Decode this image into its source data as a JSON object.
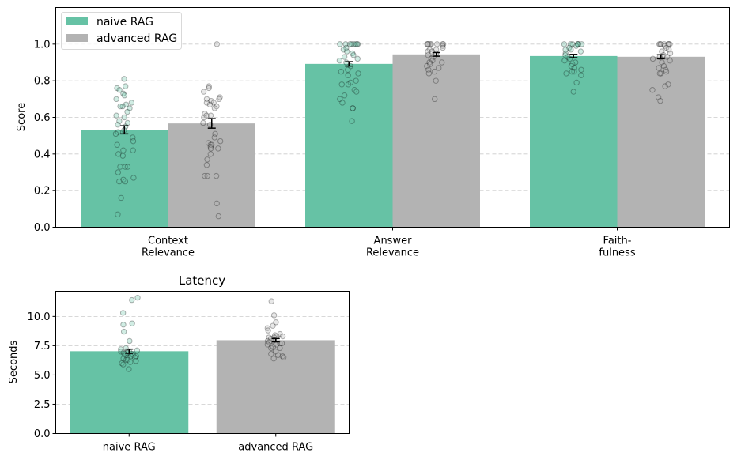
{
  "colors": {
    "naive": "#66c2a5",
    "advanced": "#b3b3b3",
    "grid": "#cccccc",
    "errorbar": "#000000"
  },
  "chart_data": [
    {
      "type": "bar",
      "title": "",
      "xlabel": "",
      "ylabel": "Score",
      "ylim": [
        0,
        1.2
      ],
      "yticks": [
        0.0,
        0.2,
        0.4,
        0.6,
        0.8,
        1.0
      ],
      "ytick_labels": [
        "0.0",
        "0.2",
        "0.4",
        "0.6",
        "0.8",
        "1.0"
      ],
      "grid": "y, dashed",
      "legend": {
        "placement": "top-left",
        "entries": [
          "naive RAG",
          "advanced RAG"
        ]
      },
      "categories": [
        [
          "Context",
          "Relevance"
        ],
        [
          "Answer",
          "Relevance"
        ],
        [
          "Faith-",
          "fulness"
        ]
      ],
      "series": [
        {
          "name": "naive RAG",
          "values": [
            0.532,
            0.892,
            0.935
          ],
          "errors": [
            0.022,
            0.012,
            0.009
          ],
          "points": [
            [
              0.81,
              0.77,
              0.76,
              0.75,
              0.73,
              0.72,
              0.7,
              0.68,
              0.67,
              0.66,
              0.66,
              0.65,
              0.63,
              0.61,
              0.6,
              0.58,
              0.57,
              0.56,
              0.55,
              0.53,
              0.52,
              0.51,
              0.49,
              0.47,
              0.45,
              0.42,
              0.42,
              0.4,
              0.39,
              0.33,
              0.33,
              0.33,
              0.3,
              0.27,
              0.26,
              0.25,
              0.25,
              0.16,
              0.07
            ],
            [
              1.0,
              1.0,
              1.0,
              1.0,
              1.0,
              1.0,
              1.0,
              1.0,
              0.98,
              0.97,
              0.96,
              0.95,
              0.94,
              0.93,
              0.92,
              0.91,
              0.9,
              0.88,
              0.86,
              0.85,
              0.84,
              0.83,
              0.8,
              0.79,
              0.78,
              0.78,
              0.75,
              0.74,
              0.72,
              0.7,
              0.68,
              0.65,
              0.65,
              0.58
            ],
            [
              1.0,
              1.0,
              1.0,
              1.0,
              1.0,
              1.0,
              1.0,
              0.99,
              0.98,
              0.97,
              0.97,
              0.96,
              0.95,
              0.94,
              0.93,
              0.92,
              0.91,
              0.9,
              0.89,
              0.88,
              0.87,
              0.86,
              0.85,
              0.85,
              0.84,
              0.83,
              0.79,
              0.74
            ]
          ]
        },
        {
          "name": "advanced RAG",
          "values": [
            0.567,
            0.944,
            0.931
          ],
          "errors": [
            0.026,
            0.01,
            0.011
          ],
          "points": [
            [
              1.0,
              0.77,
              0.76,
              0.74,
              0.71,
              0.7,
              0.7,
              0.69,
              0.68,
              0.68,
              0.67,
              0.66,
              0.65,
              0.62,
              0.61,
              0.61,
              0.6,
              0.57,
              0.56,
              0.51,
              0.49,
              0.47,
              0.46,
              0.45,
              0.45,
              0.44,
              0.43,
              0.43,
              0.4,
              0.37,
              0.34,
              0.28,
              0.28,
              0.28,
              0.13,
              0.06
            ],
            [
              1.0,
              1.0,
              1.0,
              1.0,
              1.0,
              1.0,
              1.0,
              1.0,
              0.99,
              0.98,
              0.97,
              0.97,
              0.96,
              0.96,
              0.95,
              0.94,
              0.93,
              0.92,
              0.91,
              0.9,
              0.9,
              0.89,
              0.88,
              0.87,
              0.86,
              0.85,
              0.84,
              0.8,
              0.7
            ],
            [
              1.0,
              1.0,
              1.0,
              1.0,
              1.0,
              1.0,
              1.0,
              0.99,
              0.98,
              0.97,
              0.96,
              0.95,
              0.94,
              0.93,
              0.93,
              0.92,
              0.91,
              0.9,
              0.88,
              0.87,
              0.86,
              0.85,
              0.84,
              0.84,
              0.78,
              0.77,
              0.75,
              0.71,
              0.69
            ]
          ]
        }
      ]
    },
    {
      "type": "bar",
      "title": "Latency",
      "xlabel": "",
      "ylabel": "Seconds",
      "ylim": [
        0,
        12.15
      ],
      "yticks": [
        0.0,
        2.5,
        5.0,
        7.5,
        10.0
      ],
      "ytick_labels": [
        "0.0",
        "2.5",
        "5.0",
        "7.5",
        "10.0"
      ],
      "grid": "y, dashed",
      "categories": [
        "naive RAG",
        "advanced RAG"
      ],
      "values": [
        7.03,
        7.97
      ],
      "errors": [
        0.18,
        0.14
      ],
      "points": [
        [
          11.6,
          11.4,
          10.3,
          9.4,
          9.3,
          8.7,
          7.9,
          7.3,
          7.2,
          7.1,
          7.0,
          7.0,
          6.9,
          6.9,
          6.8,
          6.8,
          6.7,
          6.7,
          6.6,
          6.6,
          6.5,
          6.5,
          6.4,
          6.3,
          6.3,
          6.2,
          6.1,
          6.0,
          5.9,
          5.5
        ],
        [
          11.3,
          10.1,
          9.5,
          9.2,
          9.0,
          8.8,
          8.5,
          8.4,
          8.3,
          8.3,
          8.2,
          8.2,
          8.1,
          8.0,
          7.9,
          7.8,
          7.7,
          7.7,
          7.6,
          7.6,
          7.5,
          7.4,
          7.3,
          7.3,
          7.0,
          6.8,
          6.7,
          6.6,
          6.5,
          6.4
        ]
      ]
    }
  ]
}
